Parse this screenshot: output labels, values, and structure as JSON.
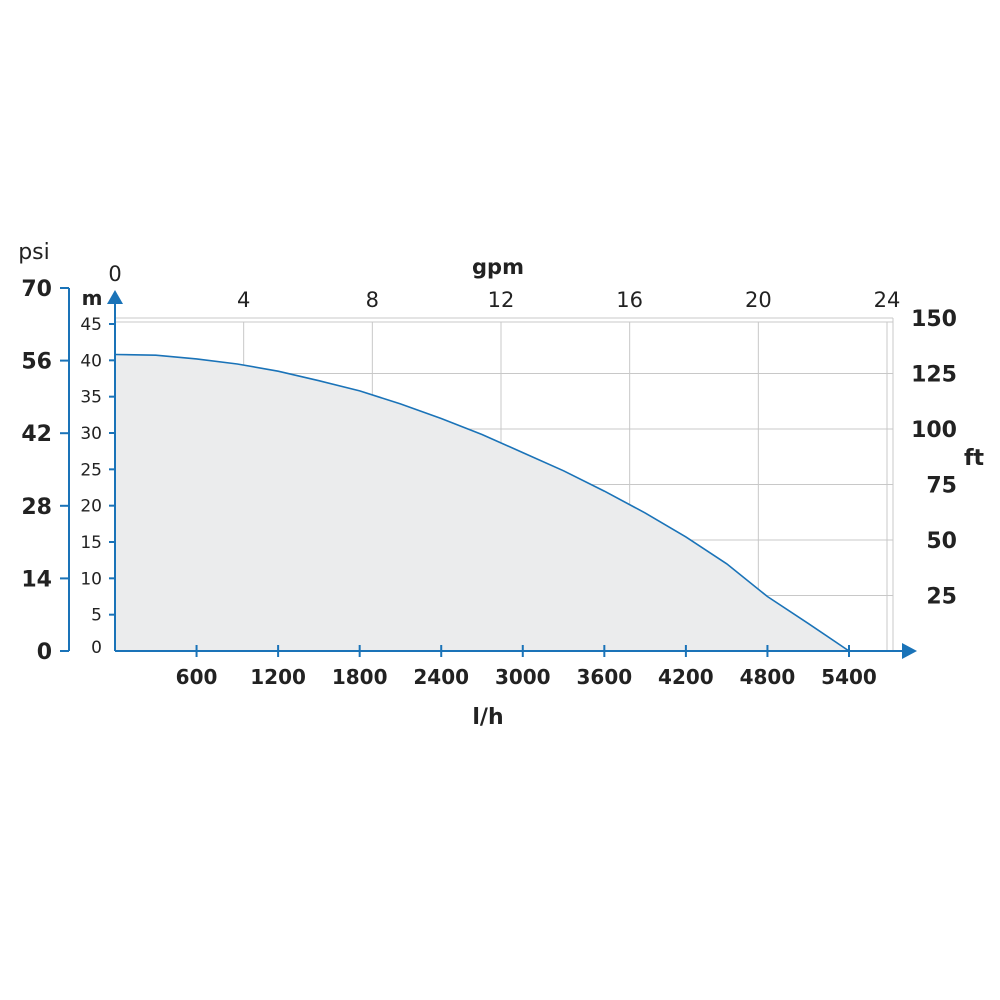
{
  "colors": {
    "axis": "#1a73b8",
    "curve": "#1a73b8",
    "fill": "#ebeced",
    "grid": "#c8c8c8",
    "text": "#222222"
  },
  "chart_data": {
    "type": "area",
    "title": "",
    "x_bottom": {
      "label": "l/h",
      "range": [
        0,
        5700
      ],
      "ticks": [
        600,
        1200,
        1800,
        2400,
        3000,
        3600,
        4200,
        4800,
        5400
      ],
      "tick_labels": [
        "600",
        "1200",
        "1800",
        "2400",
        "3000",
        "3600",
        "4200",
        "4800",
        "5400"
      ]
    },
    "x_top": {
      "label": "gpm",
      "ticks": [
        0,
        4,
        8,
        12,
        16,
        20,
        24
      ],
      "tick_labels": [
        "0",
        "4",
        "8",
        "12",
        "16",
        "20",
        "24"
      ]
    },
    "y_left_outer": {
      "label": "psi",
      "ticks": [
        0,
        14,
        28,
        42,
        56,
        70
      ],
      "tick_labels": [
        "0",
        "14",
        "28",
        "42",
        "56",
        "70"
      ]
    },
    "y_left_inner": {
      "label": "m",
      "range": [
        0,
        45
      ],
      "ticks": [
        0,
        5,
        10,
        15,
        20,
        25,
        30,
        35,
        40,
        45
      ],
      "tick_labels": [
        "0",
        "5",
        "10",
        "15",
        "20",
        "25",
        "30",
        "35",
        "40",
        "45"
      ]
    },
    "y_right": {
      "label": "ft",
      "ticks": [
        25,
        50,
        75,
        100,
        125,
        150
      ],
      "tick_labels": [
        "25",
        "50",
        "75",
        "100",
        "125",
        "150"
      ]
    },
    "grid": true,
    "series": [
      {
        "x": [
          0,
          300,
          600,
          900,
          1200,
          1500,
          1800,
          2100,
          2400,
          2700,
          3000,
          3300,
          3600,
          3900,
          4200,
          4500,
          4800,
          5100,
          5400
        ],
        "y": [
          40.8,
          40.7,
          40.2,
          39.5,
          38.5,
          37.2,
          35.8,
          34.0,
          32.0,
          29.8,
          27.3,
          24.8,
          22.0,
          19.0,
          15.7,
          12.0,
          7.5,
          3.8,
          0
        ]
      }
    ]
  }
}
